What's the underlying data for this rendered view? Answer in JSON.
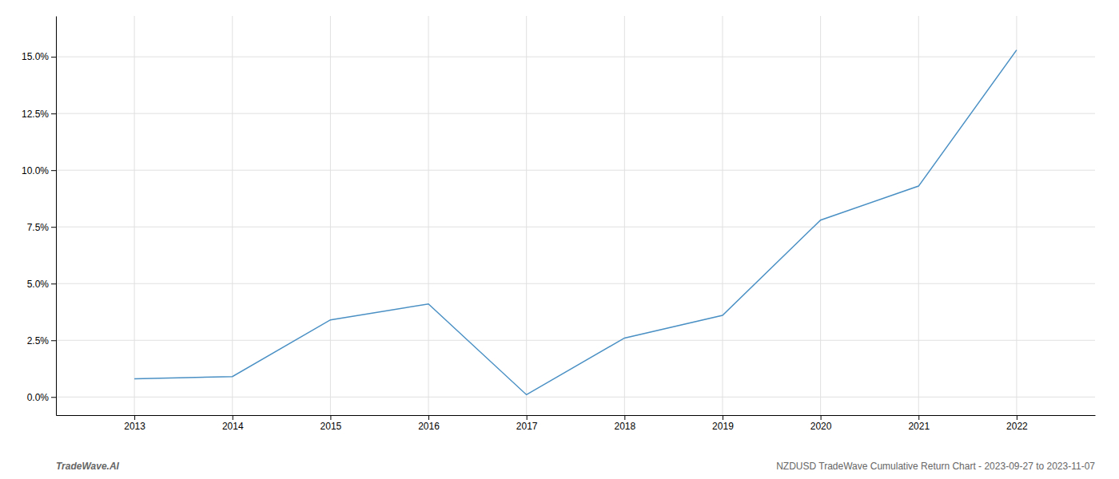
{
  "chart_data": {
    "type": "line",
    "x": [
      2013,
      2014,
      2015,
      2016,
      2017,
      2018,
      2019,
      2020,
      2021,
      2022
    ],
    "values": [
      0.008,
      0.009,
      0.034,
      0.041,
      0.001,
      0.026,
      0.036,
      0.078,
      0.093,
      0.153
    ],
    "color": "#4a90c4",
    "xlim": [
      2012.2,
      2022.8
    ],
    "xticks": [
      2013,
      2014,
      2015,
      2016,
      2017,
      2018,
      2019,
      2020,
      2021,
      2022
    ],
    "ylim": [
      -0.008,
      0.168
    ],
    "yticks": [
      {
        "value": 0.0,
        "label": "0.0%"
      },
      {
        "value": 0.025,
        "label": "2.5%"
      },
      {
        "value": 0.05,
        "label": "5.0%"
      },
      {
        "value": 0.075,
        "label": "7.5%"
      },
      {
        "value": 0.1,
        "label": "10.0%"
      },
      {
        "value": 0.125,
        "label": "12.5%"
      },
      {
        "value": 0.15,
        "label": "15.0%"
      }
    ],
    "grid": true,
    "annotations": [
      "TradeWave.AI",
      "NZDUSD TradeWave Cumulative Return Chart - 2023-09-27 to 2023-11-07"
    ]
  }
}
